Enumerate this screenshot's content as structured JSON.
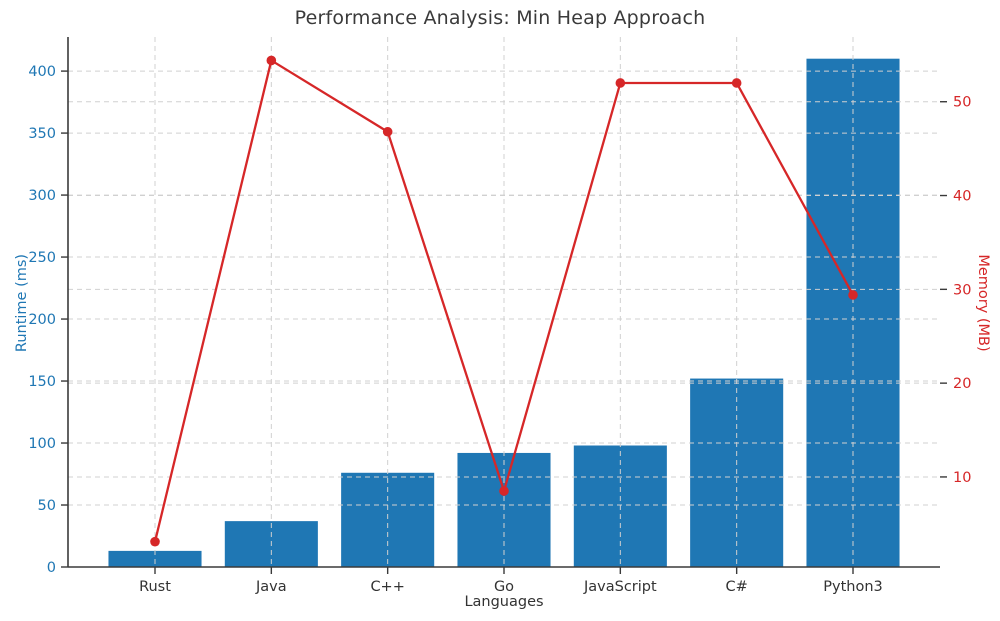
{
  "chart_data": {
    "type": "bar",
    "title": "Performance Analysis: Min Heap Approach",
    "xlabel": "Languages",
    "categories": [
      "Rust",
      "Java",
      "C++",
      "Go",
      "JavaScript",
      "C#",
      "Python3"
    ],
    "series": [
      {
        "name": "Runtime (ms)",
        "render": "bar",
        "axis": "left",
        "color": "#1f77b4",
        "values": [
          13,
          37,
          76,
          92,
          98,
          152,
          410
        ]
      },
      {
        "name": "Memory (MB)",
        "render": "line",
        "axis": "right",
        "color": "#d62728",
        "marker": "circle",
        "values": [
          3.1,
          54.4,
          46.8,
          8.5,
          52.0,
          52.0,
          29.4
        ]
      }
    ],
    "left_axis": {
      "label": "Runtime (ms)",
      "color": "#1f77b4",
      "ticks": [
        0,
        50,
        100,
        150,
        200,
        250,
        300,
        350,
        400
      ],
      "range": [
        0,
        427.5
      ]
    },
    "right_axis": {
      "label": "Memory (MB)",
      "color": "#d62728",
      "ticks": [
        10,
        20,
        30,
        40,
        50
      ],
      "range": [
        0.4,
        56.9
      ]
    },
    "grid": true,
    "grid_style": "dashed",
    "legend": false,
    "spine_color": "#3a3a3a",
    "tick_label_color_x": "#333333"
  }
}
